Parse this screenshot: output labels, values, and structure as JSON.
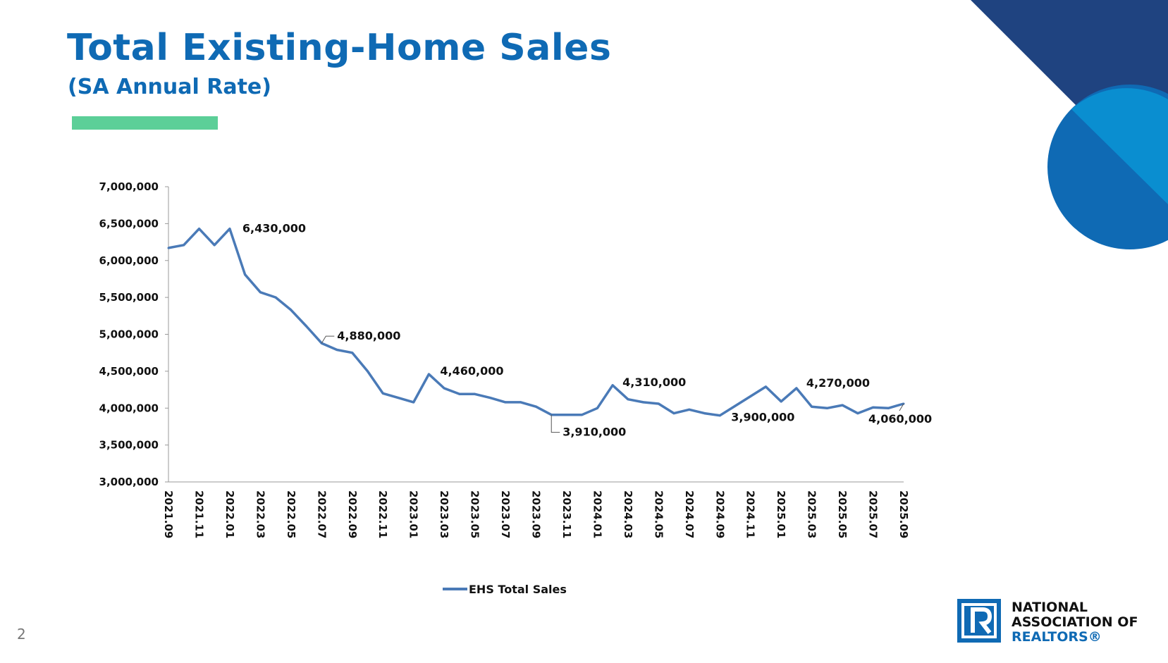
{
  "slide": {
    "title": "Total Existing-Home Sales",
    "subtitle": "(SA Annual Rate)",
    "page_number": "2"
  },
  "colors": {
    "title": "#0f6ab4",
    "accent_bar": "#5ccf98",
    "line": "#4a7ab7",
    "deco_navy": "#1f4380",
    "deco_blue": "#0f6ab4",
    "deco_light": "#0a8ed0"
  },
  "logo": {
    "line1": "NATIONAL",
    "line2": "ASSOCIATION OF",
    "line3": "REALTORS®",
    "mark_letter": "R"
  },
  "chart_data": {
    "type": "line",
    "title": "",
    "xlabel": "",
    "ylabel": "",
    "ylim": [
      3000000,
      7000000
    ],
    "yticks": [
      3000000,
      3500000,
      4000000,
      4500000,
      5000000,
      5500000,
      6000000,
      6500000,
      7000000
    ],
    "ytick_labels": [
      "3,000,000",
      "3,500,000",
      "4,000,000",
      "4,500,000",
      "5,000,000",
      "5,500,000",
      "6,000,000",
      "6,500,000",
      "7,000,000"
    ],
    "xtick_labels": [
      "2021.09",
      "2021.11",
      "2022.01",
      "2022.03",
      "2022.05",
      "2022.07",
      "2022.09",
      "2022.11",
      "2023.01",
      "2023.03",
      "2023.05",
      "2023.07",
      "2023.09",
      "2023.11",
      "2024.01",
      "2024.03",
      "2024.05",
      "2024.07",
      "2024.09",
      "2024.11",
      "2025.01",
      "2025.03",
      "2025.05",
      "2025.07",
      "2025.09"
    ],
    "categories": [
      "2021.09",
      "2021.10",
      "2021.11",
      "2021.12",
      "2022.01",
      "2022.02",
      "2022.03",
      "2022.04",
      "2022.05",
      "2022.06",
      "2022.07",
      "2022.08",
      "2022.09",
      "2022.10",
      "2022.11",
      "2022.12",
      "2023.01",
      "2023.02",
      "2023.03",
      "2023.04",
      "2023.05",
      "2023.06",
      "2023.07",
      "2023.08",
      "2023.09",
      "2023.10",
      "2023.11",
      "2023.12",
      "2024.01",
      "2024.02",
      "2024.03",
      "2024.04",
      "2024.05",
      "2024.06",
      "2024.07",
      "2024.08",
      "2024.09",
      "2024.10",
      "2024.11",
      "2024.12",
      "2025.01",
      "2025.02",
      "2025.03",
      "2025.04",
      "2025.05",
      "2025.06",
      "2025.07",
      "2025.08",
      "2025.09"
    ],
    "series": [
      {
        "name": "EHS Total Sales",
        "values": [
          6170000,
          6210000,
          6430000,
          6210000,
          6430000,
          5810000,
          5570000,
          5500000,
          5330000,
          5110000,
          4880000,
          4790000,
          4750000,
          4500000,
          4200000,
          4140000,
          4080000,
          4460000,
          4270000,
          4190000,
          4190000,
          4140000,
          4080000,
          4080000,
          4020000,
          3910000,
          3910000,
          3910000,
          4000000,
          4310000,
          4120000,
          4080000,
          4060000,
          3930000,
          3980000,
          3930000,
          3900000,
          4030000,
          4160000,
          4290000,
          4090000,
          4270000,
          4020000,
          4000000,
          4040000,
          3930000,
          4010000,
          4000000,
          4060000
        ]
      }
    ],
    "annotations": [
      {
        "label": "6,430,000",
        "index": 4
      },
      {
        "label": "4,880,000",
        "index": 10
      },
      {
        "label": "4,460,000",
        "index": 17
      },
      {
        "label": "3,910,000",
        "index": 25
      },
      {
        "label": "4,310,000",
        "index": 29
      },
      {
        "label": "3,900,000",
        "index": 36
      },
      {
        "label": "4,270,000",
        "index": 41
      },
      {
        "label": "4,060,000",
        "index": 48
      }
    ],
    "legend": {
      "position": "bottom",
      "label": "EHS Total Sales"
    }
  }
}
